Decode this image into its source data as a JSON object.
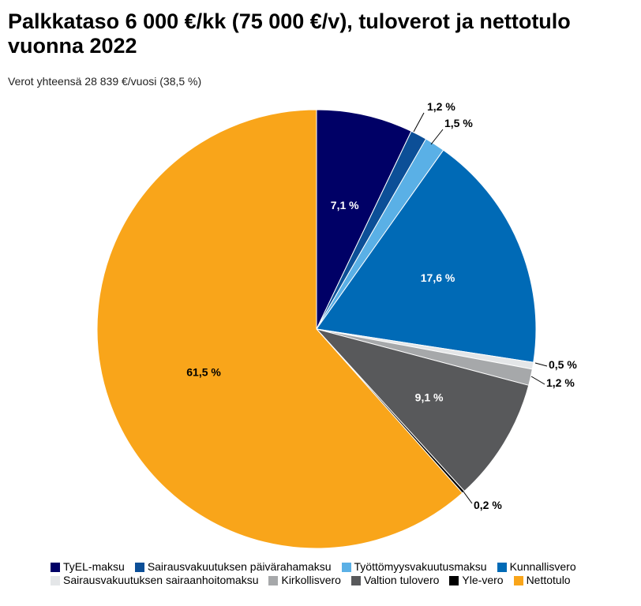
{
  "title": "Palkkataso 6 000 €/kk (75 000 €/v), tuloverot ja nettotulo vuonna 2022",
  "subtitle": "Verot yhteensä 28 839 €/vuosi (38,5 %)",
  "chart_data": {
    "type": "pie",
    "slices": [
      {
        "name": "TyEL-maksu",
        "value": 7.1,
        "label": "7,1 %",
        "color": "#000066"
      },
      {
        "name": "Sairausvakuutuksen päivärahamaksu",
        "value": 1.2,
        "label": "1,2 %",
        "color": "#0c4f97"
      },
      {
        "name": "Työttömyysvakuutusmaksu",
        "value": 1.5,
        "label": "1,5 %",
        "color": "#5ab0e6"
      },
      {
        "name": "Kunnallisvero",
        "value": 17.6,
        "label": "17,6 %",
        "color": "#006ab6"
      },
      {
        "name": "Sairausvakuutuksen sairaanhoitomaksu",
        "value": 0.5,
        "label": "0,5 %",
        "color": "#e4e6e8"
      },
      {
        "name": "Kirkollisvero",
        "value": 1.2,
        "label": "1,2 %",
        "color": "#a6a8aa"
      },
      {
        "name": "Valtion tulovero",
        "value": 9.1,
        "label": "9,1 %",
        "color": "#58595b"
      },
      {
        "name": "Yle-vero",
        "value": 0.2,
        "label": "0,2 %",
        "color": "#000000"
      },
      {
        "name": "Nettotulo",
        "value": 61.5,
        "label": "61,5 %",
        "color": "#f9a51a"
      }
    ],
    "legend_placement": "bottom"
  }
}
